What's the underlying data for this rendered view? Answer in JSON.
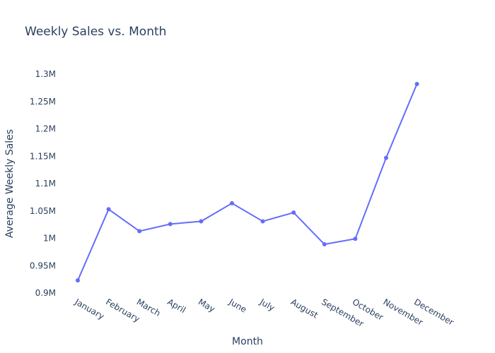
{
  "chart_data": {
    "type": "line",
    "title": "Weekly Sales vs. Month",
    "xlabel": "Month",
    "ylabel": "Average Weekly Sales",
    "categories": [
      "January",
      "February",
      "March",
      "April",
      "May",
      "June",
      "July",
      "August",
      "September",
      "October",
      "November",
      "December"
    ],
    "series": [
      {
        "values": [
          923000,
          1053000,
          1013000,
          1026000,
          1031000,
          1064000,
          1031000,
          1047000,
          989000,
          999000,
          1147000,
          1282000
        ]
      }
    ],
    "ylim": [
      0.9,
      1.3
    ],
    "yticks": [
      0.9,
      0.95,
      1.0,
      1.05,
      1.1,
      1.15,
      1.2,
      1.25,
      1.3
    ],
    "ytick_labels": [
      "0.9M",
      "0.95M",
      "1M",
      "1.05M",
      "1.1M",
      "1.15M",
      "1.2M",
      "1.25M",
      "1.3M"
    ],
    "grid": false,
    "line_color": "#636efa"
  }
}
